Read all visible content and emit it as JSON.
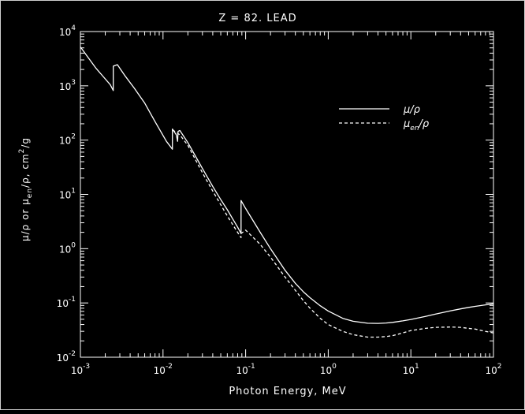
{
  "chart_data": {
    "type": "line",
    "title": "Z = 82.   LEAD",
    "xlabel": "Photon Energy, MeV",
    "ylabel": "μ/ρ or μen/ρ, cm2/g",
    "x_scale": "log",
    "y_scale": "log",
    "xlim": [
      0.001,
      100
    ],
    "ylim": [
      0.01,
      10000
    ],
    "x_ticks": [
      {
        "base": "10",
        "exp": "-3",
        "value": 0.001
      },
      {
        "base": "10",
        "exp": "-2",
        "value": 0.01
      },
      {
        "base": "10",
        "exp": "-1",
        "value": 0.1
      },
      {
        "base": "10",
        "exp": "0",
        "value": 1
      },
      {
        "base": "10",
        "exp": "1",
        "value": 10
      },
      {
        "base": "10",
        "exp": "2",
        "value": 100
      }
    ],
    "y_ticks": [
      {
        "base": "10",
        "exp": "-2",
        "value": 0.01
      },
      {
        "base": "10",
        "exp": "-1",
        "value": 0.1
      },
      {
        "base": "10",
        "exp": "0",
        "value": 1
      },
      {
        "base": "10",
        "exp": "1",
        "value": 10
      },
      {
        "base": "10",
        "exp": "2",
        "value": 100
      },
      {
        "base": "10",
        "exp": "3",
        "value": 1000
      },
      {
        "base": "10",
        "exp": "4",
        "value": 10000
      }
    ],
    "legend_position": "upper-right",
    "series": [
      {
        "name": "μ/ρ",
        "style": "solid",
        "points": [
          [
            0.001,
            5200
          ],
          [
            0.00155,
            2100
          ],
          [
            0.0023,
            1050
          ],
          [
            0.0025,
            820
          ],
          [
            0.0025,
            2300
          ],
          [
            0.0028,
            2450
          ],
          [
            0.0035,
            1500
          ],
          [
            0.0045,
            900
          ],
          [
            0.006,
            480
          ],
          [
            0.008,
            220
          ],
          [
            0.011,
            95
          ],
          [
            0.013,
            68
          ],
          [
            0.013,
            160
          ],
          [
            0.0145,
            125
          ],
          [
            0.015,
            95
          ],
          [
            0.0152,
            145
          ],
          [
            0.016,
            150
          ],
          [
            0.02,
            90
          ],
          [
            0.03,
            30
          ],
          [
            0.04,
            14
          ],
          [
            0.05,
            8
          ],
          [
            0.06,
            5.2
          ],
          [
            0.07,
            3.5
          ],
          [
            0.08,
            2.5
          ],
          [
            0.088,
            1.9
          ],
          [
            0.088,
            7.7
          ],
          [
            0.1,
            5.5
          ],
          [
            0.15,
            2.0
          ],
          [
            0.2,
            1.0
          ],
          [
            0.3,
            0.4
          ],
          [
            0.4,
            0.23
          ],
          [
            0.5,
            0.16
          ],
          [
            0.6,
            0.125
          ],
          [
            0.8,
            0.089
          ],
          [
            1,
            0.071
          ],
          [
            1.5,
            0.052
          ],
          [
            2,
            0.046
          ],
          [
            3,
            0.0423
          ],
          [
            4,
            0.042
          ],
          [
            5,
            0.0427
          ],
          [
            6,
            0.0439
          ],
          [
            8,
            0.0468
          ],
          [
            10,
            0.0497
          ],
          [
            15,
            0.0565
          ],
          [
            20,
            0.0625
          ],
          [
            30,
            0.0713
          ],
          [
            40,
            0.0778
          ],
          [
            50,
            0.0827
          ],
          [
            60,
            0.0866
          ],
          [
            80,
            0.0922
          ],
          [
            100,
            0.0964
          ]
        ]
      },
      {
        "name": "μen/ρ",
        "style": "dashed",
        "points": [
          [
            0.013,
            155
          ],
          [
            0.016,
            125
          ],
          [
            0.02,
            80
          ],
          [
            0.03,
            25
          ],
          [
            0.04,
            11.5
          ],
          [
            0.06,
            4.0
          ],
          [
            0.08,
            2.0
          ],
          [
            0.088,
            1.6
          ],
          [
            0.088,
            1.9
          ],
          [
            0.1,
            2.2
          ],
          [
            0.15,
            1.2
          ],
          [
            0.2,
            0.7
          ],
          [
            0.3,
            0.3
          ],
          [
            0.5,
            0.11
          ],
          [
            0.6,
            0.08
          ],
          [
            0.8,
            0.052
          ],
          [
            1,
            0.04
          ],
          [
            1.5,
            0.03
          ],
          [
            2,
            0.026
          ],
          [
            3,
            0.0235
          ],
          [
            4,
            0.0235
          ],
          [
            5,
            0.024
          ],
          [
            6,
            0.025
          ],
          [
            8,
            0.028
          ],
          [
            10,
            0.031
          ],
          [
            15,
            0.034
          ],
          [
            20,
            0.0355
          ],
          [
            30,
            0.036
          ],
          [
            40,
            0.0355
          ],
          [
            50,
            0.034
          ],
          [
            60,
            0.033
          ],
          [
            80,
            0.03
          ],
          [
            100,
            0.028
          ]
        ]
      }
    ]
  },
  "legend": {
    "solid": {
      "main": "μ/ρ",
      "sub": ""
    },
    "dashed": {
      "main": "μ",
      "sub": "en",
      "tail": "/ρ"
    }
  },
  "axis_text": {
    "xlabel": "Photon Energy, MeV",
    "title": "Z = 82.   LEAD",
    "ylabel_a": "μ/ρ or μ",
    "ylabel_sub": "en",
    "ylabel_b": "/ρ, cm",
    "ylabel_sup": "2",
    "ylabel_c": "/g"
  }
}
